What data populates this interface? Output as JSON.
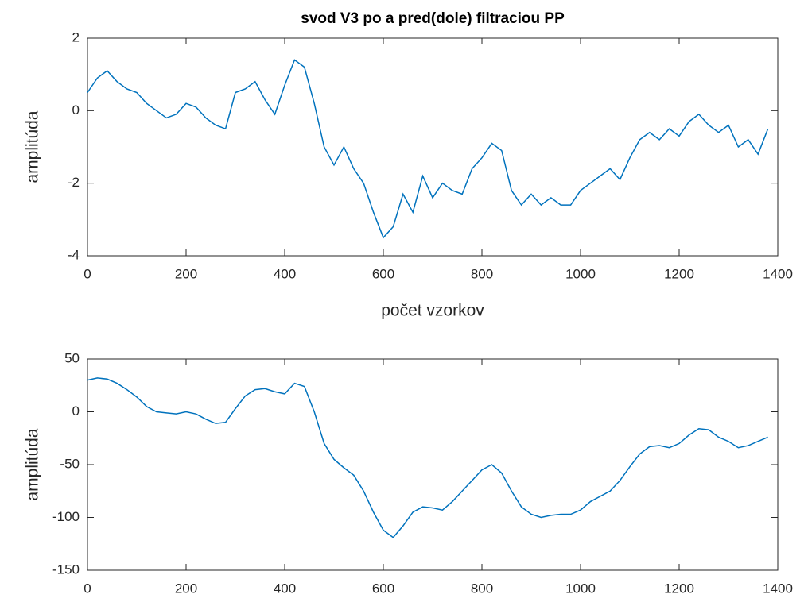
{
  "chart_data": [
    {
      "type": "line",
      "title": "svod V3 po a pred(dole) filtraciou PP",
      "xlabel": "počet vzorkov",
      "ylabel": "amplitúda",
      "x": [
        0,
        20,
        40,
        60,
        80,
        100,
        120,
        140,
        160,
        180,
        200,
        220,
        240,
        260,
        280,
        300,
        320,
        340,
        360,
        380,
        400,
        420,
        440,
        460,
        480,
        500,
        520,
        540,
        560,
        580,
        600,
        620,
        640,
        660,
        680,
        700,
        720,
        740,
        760,
        780,
        800,
        820,
        840,
        860,
        880,
        900,
        920,
        940,
        960,
        980,
        1000,
        1020,
        1040,
        1060,
        1080,
        1100,
        1120,
        1140,
        1160,
        1180,
        1200,
        1220,
        1240,
        1260,
        1280,
        1300,
        1320,
        1340,
        1360,
        1380
      ],
      "series": [
        {
          "color": "#0072bd",
          "values": [
            0.5,
            0.9,
            1.1,
            0.8,
            0.6,
            0.5,
            0.2,
            0.0,
            -0.2,
            -0.1,
            0.2,
            0.1,
            -0.2,
            -0.4,
            -0.5,
            0.5,
            0.6,
            0.8,
            0.3,
            -0.1,
            0.7,
            1.4,
            1.2,
            0.2,
            -1.0,
            -1.5,
            -1.0,
            -1.6,
            -2.0,
            -2.8,
            -3.5,
            -3.2,
            -2.3,
            -2.8,
            -1.8,
            -2.4,
            -2.0,
            -2.2,
            -2.3,
            -1.6,
            -1.3,
            -0.9,
            -1.1,
            -2.2,
            -2.6,
            -2.3,
            -2.6,
            -2.4,
            -2.6,
            -2.6,
            -2.2,
            -2.0,
            -1.8,
            -1.6,
            -1.9,
            -1.3,
            -0.8,
            -0.6,
            -0.8,
            -0.5,
            -0.7,
            -0.3,
            -0.1,
            -0.4,
            -0.6,
            -0.4,
            -1.0,
            -0.8,
            -1.2,
            -0.5
          ]
        }
      ],
      "xlim": [
        0,
        1400
      ],
      "xticks": [
        0,
        200,
        400,
        600,
        800,
        1000,
        1200,
        1400
      ],
      "ylim": [
        -4,
        2
      ],
      "yticks": [
        -4,
        -2,
        0,
        2
      ]
    },
    {
      "type": "line",
      "ylabel": "amplitúda",
      "x": [
        0,
        20,
        40,
        60,
        80,
        100,
        120,
        140,
        160,
        180,
        200,
        220,
        240,
        260,
        280,
        300,
        320,
        340,
        360,
        380,
        400,
        420,
        440,
        460,
        480,
        500,
        520,
        540,
        560,
        580,
        600,
        620,
        640,
        660,
        680,
        700,
        720,
        740,
        760,
        780,
        800,
        820,
        840,
        860,
        880,
        900,
        920,
        940,
        960,
        980,
        1000,
        1020,
        1040,
        1060,
        1080,
        1100,
        1120,
        1140,
        1160,
        1180,
        1200,
        1220,
        1240,
        1260,
        1280,
        1300,
        1320,
        1340,
        1360,
        1380
      ],
      "series": [
        {
          "color": "#0072bd",
          "values": [
            30,
            32,
            31,
            27,
            21,
            14,
            5,
            0,
            -1,
            -2,
            0,
            -2,
            -7,
            -11,
            -10,
            3,
            15,
            21,
            22,
            19,
            17,
            27,
            24,
            0,
            -30,
            -45,
            -53,
            -60,
            -75,
            -95,
            -112,
            -119,
            -108,
            -95,
            -90,
            -91,
            -93,
            -85,
            -75,
            -65,
            -55,
            -50,
            -58,
            -75,
            -90,
            -97,
            -100,
            -98,
            -97,
            -97,
            -93,
            -85,
            -80,
            -75,
            -65,
            -52,
            -40,
            -33,
            -32,
            -34,
            -30,
            -22,
            -16,
            -17,
            -24,
            -28,
            -34,
            -32,
            -28,
            -24
          ]
        }
      ],
      "xlim": [
        0,
        1400
      ],
      "xticks": [
        0,
        200,
        400,
        600,
        800,
        1000,
        1200,
        1400
      ],
      "ylim": [
        -150,
        50
      ],
      "yticks": [
        -150,
        -100,
        -50,
        0,
        50
      ]
    }
  ]
}
